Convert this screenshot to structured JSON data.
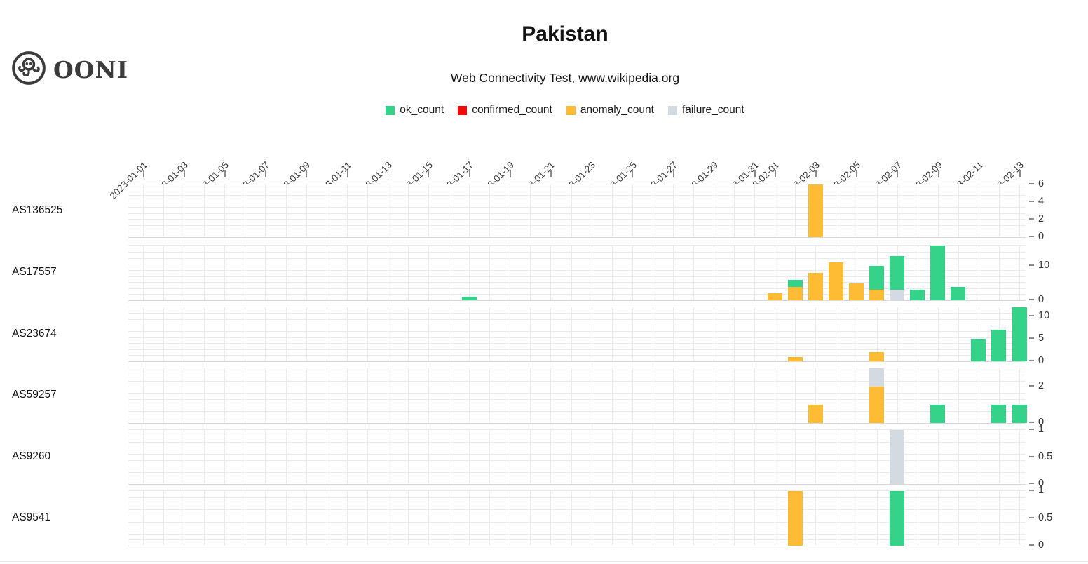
{
  "header": {
    "logo_text": "OONI",
    "title": "Pakistan",
    "subtitle": "Web Connectivity Test, www.wikipedia.org"
  },
  "legend": [
    {
      "label": "ok_count",
      "color": "#34d389"
    },
    {
      "label": "confirmed_count",
      "color": "#f10a0a"
    },
    {
      "label": "anomaly_count",
      "color": "#fdbc33"
    },
    {
      "label": "failure_count",
      "color": "#d4dae2"
    }
  ],
  "chart_data": {
    "type": "bar",
    "stacked": true,
    "x_start": "2023-01-01",
    "x_end": "2023-02-13",
    "grid": true,
    "legend_position": "top-center",
    "x_tick_labels": [
      "2023-01-01",
      "2023-01-03",
      "2023-01-05",
      "2023-01-07",
      "2023-01-09",
      "2023-01-11",
      "2023-01-13",
      "2023-01-15",
      "2023-01-17",
      "2023-01-19",
      "2023-01-21",
      "2023-01-23",
      "2023-01-25",
      "2023-01-27",
      "2023-01-29",
      "2023-01-31",
      "2023-02-01",
      "2023-02-03",
      "2023-02-05",
      "2023-02-07",
      "2023-02-09",
      "2023-02-11",
      "2023-02-13"
    ],
    "series_names": [
      "ok_count",
      "confirmed_count",
      "anomaly_count",
      "failure_count"
    ],
    "rows": [
      {
        "asn": "AS136525",
        "y_max": 6,
        "y_ticks": [
          0,
          2,
          4,
          6
        ],
        "bars": [
          {
            "date": "2023-02-03",
            "segments": [
              {
                "series": "anomaly_count",
                "value": 6
              }
            ]
          }
        ]
      },
      {
        "asn": "AS17557",
        "y_max": 16,
        "y_ticks": [
          0,
          10
        ],
        "bars": [
          {
            "date": "2023-01-17",
            "segments": [
              {
                "series": "ok_count",
                "value": 1
              }
            ]
          },
          {
            "date": "2023-02-01",
            "segments": [
              {
                "series": "anomaly_count",
                "value": 2
              }
            ]
          },
          {
            "date": "2023-02-02",
            "segments": [
              {
                "series": "anomaly_count",
                "value": 4
              },
              {
                "series": "ok_count",
                "value": 2
              }
            ]
          },
          {
            "date": "2023-02-03",
            "segments": [
              {
                "series": "anomaly_count",
                "value": 8
              }
            ]
          },
          {
            "date": "2023-02-04",
            "segments": [
              {
                "series": "anomaly_count",
                "value": 11
              }
            ]
          },
          {
            "date": "2023-02-05",
            "segments": [
              {
                "series": "anomaly_count",
                "value": 5
              }
            ]
          },
          {
            "date": "2023-02-06",
            "segments": [
              {
                "series": "anomaly_count",
                "value": 3
              },
              {
                "series": "ok_count",
                "value": 7
              }
            ]
          },
          {
            "date": "2023-02-07",
            "segments": [
              {
                "series": "failure_count",
                "value": 3
              },
              {
                "series": "ok_count",
                "value": 10
              }
            ]
          },
          {
            "date": "2023-02-08",
            "segments": [
              {
                "series": "ok_count",
                "value": 3
              }
            ]
          },
          {
            "date": "2023-02-09",
            "segments": [
              {
                "series": "ok_count",
                "value": 16
              }
            ]
          },
          {
            "date": "2023-02-10",
            "segments": [
              {
                "series": "ok_count",
                "value": 4
              }
            ]
          }
        ]
      },
      {
        "asn": "AS23674",
        "y_max": 12,
        "y_ticks": [
          0,
          5,
          10
        ],
        "bars": [
          {
            "date": "2023-02-02",
            "segments": [
              {
                "series": "anomaly_count",
                "value": 1
              }
            ]
          },
          {
            "date": "2023-02-06",
            "segments": [
              {
                "series": "anomaly_count",
                "value": 2
              }
            ]
          },
          {
            "date": "2023-02-11",
            "segments": [
              {
                "series": "ok_count",
                "value": 5
              }
            ]
          },
          {
            "date": "2023-02-12",
            "segments": [
              {
                "series": "ok_count",
                "value": 7
              }
            ]
          },
          {
            "date": "2023-02-13",
            "segments": [
              {
                "series": "ok_count",
                "value": 12
              }
            ]
          }
        ]
      },
      {
        "asn": "AS59257",
        "y_max": 3,
        "y_ticks": [
          0,
          2
        ],
        "bars": [
          {
            "date": "2023-02-03",
            "segments": [
              {
                "series": "anomaly_count",
                "value": 1
              }
            ]
          },
          {
            "date": "2023-02-06",
            "segments": [
              {
                "series": "anomaly_count",
                "value": 2
              },
              {
                "series": "failure_count",
                "value": 1
              }
            ]
          },
          {
            "date": "2023-02-09",
            "segments": [
              {
                "series": "ok_count",
                "value": 1
              }
            ]
          },
          {
            "date": "2023-02-12",
            "segments": [
              {
                "series": "ok_count",
                "value": 1
              }
            ]
          },
          {
            "date": "2023-02-13",
            "segments": [
              {
                "series": "ok_count",
                "value": 1
              }
            ]
          }
        ]
      },
      {
        "asn": "AS9260",
        "y_max": 1,
        "y_ticks": [
          0,
          0.5,
          1
        ],
        "bars": [
          {
            "date": "2023-02-07",
            "segments": [
              {
                "series": "failure_count",
                "value": 1
              }
            ]
          }
        ]
      },
      {
        "asn": "AS9541",
        "y_max": 1,
        "y_ticks": [
          0,
          0.5,
          1
        ],
        "bars": [
          {
            "date": "2023-02-02",
            "segments": [
              {
                "series": "anomaly_count",
                "value": 1
              }
            ]
          },
          {
            "date": "2023-02-07",
            "segments": [
              {
                "series": "ok_count",
                "value": 1
              }
            ]
          }
        ]
      }
    ]
  }
}
